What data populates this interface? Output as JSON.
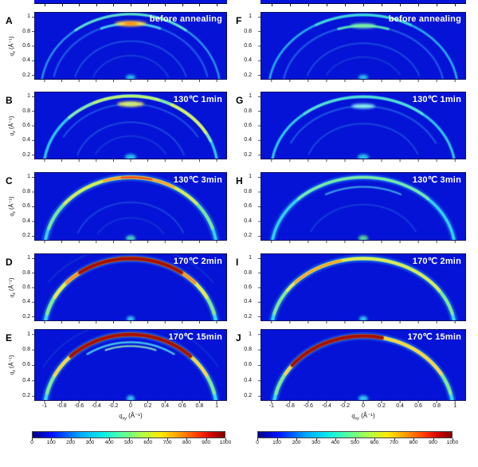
{
  "figure": {
    "background": "#ffffff",
    "panel_bg": "#0513d6",
    "panel_border": "#0b1060",
    "colormap_name": "jet",
    "colormap_css": "linear-gradient(to right,#000082 0%,#0010ff 10%,#00a8ff 25%,#0cf0e6 37%,#58ff9b 47%,#b0ff47 57%,#ffe900 67%,#ff9400 77%,#ff2f00 87%,#c80000 94%,#7f0000 100%)"
  },
  "axes": {
    "y_label": {
      "pre": "q",
      "sub": "z",
      "post": " (Å⁻¹)"
    },
    "x_label": {
      "pre": "q",
      "sub": "xy",
      "post": " (Å⁻¹)"
    },
    "y_ticks": [
      "1",
      "0.8",
      "0.6",
      "0.4",
      "0.2"
    ],
    "x_ticks": [
      "-1",
      "-0.8",
      "-0.6",
      "-0.4",
      "-0.2",
      "0",
      "0.2",
      "0.4",
      "0.6",
      "0.8",
      "1"
    ]
  },
  "colorbar": {
    "min": 0,
    "max": 1000,
    "ticks": [
      "0",
      "100",
      "200",
      "300",
      "400",
      "500",
      "600",
      "700",
      "800",
      "900",
      "1000"
    ]
  },
  "chart_data": {
    "type": "heatmap",
    "subtype": "GIWAXS 2D scattering patterns (intensity on jet colormap)",
    "x_range": [
      -1.12,
      1.12
    ],
    "y_range": [
      0.14,
      1.07
    ],
    "intensity_range": [
      0,
      1000
    ],
    "grid": false,
    "panels": [
      {
        "id": "A",
        "column": "left",
        "row": 0,
        "annotation": "before annealing",
        "arcs": [
          {
            "q": 1.04,
            "a1": -87,
            "a2": 87,
            "c": "#2fb4f0",
            "w": 2.5,
            "o": 0.8
          },
          {
            "q": 1.04,
            "a1": -38,
            "a2": 38,
            "c": "#63e3c9",
            "w": 3,
            "o": 0.9
          },
          {
            "q": 0.91,
            "a1": -78,
            "a2": 78,
            "c": "#1e5ce8",
            "w": 2.5,
            "o": 0.9
          },
          {
            "q": 0.91,
            "a1": -22,
            "a2": 22,
            "c": "#4fd0f0",
            "w": 3,
            "o": 0.9
          },
          {
            "q": 0.67,
            "a1": -74,
            "a2": 74,
            "c": "#1e55e0",
            "w": 2,
            "o": 0.85
          },
          {
            "q": 0.47,
            "a1": -68,
            "a2": 68,
            "c": "#1c4cd8",
            "w": 2,
            "o": 0.7
          }
        ],
        "spots": [
          {
            "q": 0.91,
            "x": 0,
            "c": "#ffd843",
            "rx": 20,
            "ry": 3.2,
            "o": 1
          },
          {
            "q": 0.91,
            "x": 0,
            "c": "#ff7300",
            "rx": 9,
            "ry": 1.8,
            "o": 1
          },
          {
            "q": 0.17,
            "x": 0,
            "c": "#2ad0f0",
            "rx": 6,
            "ry": 3.5,
            "o": 0.9
          }
        ]
      },
      {
        "id": "B",
        "column": "left",
        "row": 1,
        "annotation": "130℃ 1min",
        "arcs": [
          {
            "q": 1.01,
            "a1": -87,
            "a2": 87,
            "c": "#2fd0f5",
            "w": 3.5,
            "o": 0.95
          },
          {
            "q": 1.01,
            "a1": -45,
            "a2": 68,
            "c": "#8fe9a5",
            "w": 3.5,
            "o": 0.9
          },
          {
            "q": 1.01,
            "a1": 28,
            "a2": 60,
            "c": "#e9ed55",
            "w": 3.5,
            "o": 0.9
          },
          {
            "q": 1.01,
            "a1": -25,
            "a2": 20,
            "c": "#c9ef6a",
            "w": 3,
            "o": 0.9
          },
          {
            "q": 0.9,
            "a1": -60,
            "a2": 60,
            "c": "#1e5ce8",
            "w": 2.2,
            "o": 0.8
          },
          {
            "q": 0.65,
            "a1": -72,
            "a2": 72,
            "c": "#1e55e0",
            "w": 2,
            "o": 0.8
          },
          {
            "q": 0.46,
            "a1": -62,
            "a2": 62,
            "c": "#1c4cd8",
            "w": 2,
            "o": 0.6
          }
        ],
        "spots": [
          {
            "q": 0.9,
            "x": 0,
            "c": "#eef060",
            "rx": 17,
            "ry": 3.2,
            "o": 1
          },
          {
            "q": 0.9,
            "x": 0,
            "c": "#b8f080",
            "rx": 8,
            "ry": 1.8,
            "o": 1
          },
          {
            "q": 0.17,
            "x": 0,
            "c": "#2ad0f0",
            "rx": 7,
            "ry": 4,
            "o": 0.9
          }
        ]
      },
      {
        "id": "C",
        "column": "left",
        "row": 2,
        "annotation": "130℃ 3min",
        "arcs": [
          {
            "q": 1.0,
            "a1": -88,
            "a2": 88,
            "c": "#2fa8ff",
            "w": 10,
            "o": 0.3
          },
          {
            "q": 1.0,
            "a1": -88,
            "a2": 88,
            "c": "#35d6fa",
            "w": 4,
            "o": 1
          },
          {
            "q": 1.0,
            "a1": -72,
            "a2": 72,
            "c": "#7ce98a",
            "w": 4,
            "o": 0.95
          },
          {
            "q": 1.0,
            "a1": -50,
            "a2": 50,
            "c": "#e3ea50",
            "w": 3.5,
            "o": 0.95
          },
          {
            "q": 1.0,
            "a1": -18,
            "a2": 30,
            "c": "#ff9a2e",
            "w": 3,
            "o": 0.95
          },
          {
            "q": 1.0,
            "a1": -6,
            "a2": 14,
            "c": "#e8401a",
            "w": 2.2,
            "o": 0.95
          },
          {
            "q": 0.66,
            "a1": -68,
            "a2": 68,
            "c": "#1e55e0",
            "w": 2,
            "o": 0.7
          },
          {
            "q": 0.45,
            "a1": -58,
            "a2": 58,
            "c": "#1c4cd8",
            "w": 2,
            "o": 0.5
          }
        ],
        "spots": [
          {
            "q": 0.17,
            "x": 0,
            "c": "#4fe0c0",
            "rx": 6,
            "ry": 4,
            "o": 0.9
          }
        ]
      },
      {
        "id": "D",
        "column": "left",
        "row": 3,
        "annotation": "170℃ 2min",
        "arcs": [
          {
            "q": 1.0,
            "a1": -88,
            "a2": 88,
            "c": "#2fa8ff",
            "w": 10,
            "o": 0.3
          },
          {
            "q": 1.0,
            "a1": -88,
            "a2": 88,
            "c": "#38d8fa",
            "w": 4.5,
            "o": 1
          },
          {
            "q": 1.0,
            "a1": -76,
            "a2": 76,
            "c": "#86ea80",
            "w": 4.2,
            "o": 1
          },
          {
            "q": 1.0,
            "a1": -62,
            "a2": 62,
            "c": "#e8ea4c",
            "w": 4.2,
            "o": 1
          },
          {
            "q": 1.0,
            "a1": -48,
            "a2": 48,
            "c": "#ff9227",
            "w": 4.2,
            "o": 1
          },
          {
            "q": 1.0,
            "a1": -36,
            "a2": 36,
            "c": "#a31104",
            "w": 5,
            "o": 1
          },
          {
            "q": 1.17,
            "a1": -55,
            "a2": 55,
            "c": "#1640d0",
            "w": 2,
            "o": 0.6
          }
        ],
        "spots": [
          {
            "q": 0.17,
            "x": 0,
            "c": "#3ad8f0",
            "rx": 5,
            "ry": 3.5,
            "o": 0.9
          }
        ]
      },
      {
        "id": "E",
        "column": "left",
        "row": 4,
        "annotation": "170℃ 15min",
        "arcs": [
          {
            "q": 1.0,
            "a1": -88,
            "a2": 88,
            "c": "#2fa8ff",
            "w": 10,
            "o": 0.3
          },
          {
            "q": 1.0,
            "a1": -88,
            "a2": 88,
            "c": "#38d8fa",
            "w": 4.5,
            "o": 1
          },
          {
            "q": 1.0,
            "a1": -76,
            "a2": 76,
            "c": "#86ea80",
            "w": 4,
            "o": 1
          },
          {
            "q": 1.0,
            "a1": -62,
            "a2": 62,
            "c": "#ffd243",
            "w": 4,
            "o": 1
          },
          {
            "q": 1.0,
            "a1": -44,
            "a2": 44,
            "c": "#a31104",
            "w": 5,
            "o": 1
          },
          {
            "q": 0.9,
            "a1": -34,
            "a2": 34,
            "c": "#49cdf0",
            "w": 2.5,
            "o": 0.95
          },
          {
            "q": 0.85,
            "a1": -20,
            "a2": 20,
            "c": "#8feac0",
            "w": 2.2,
            "o": 0.9
          },
          {
            "q": 1.17,
            "a1": -60,
            "a2": 60,
            "c": "#1640d0",
            "w": 2,
            "o": 0.6
          }
        ],
        "spots": [
          {
            "q": 0.17,
            "x": 0,
            "c": "#3ad8f0",
            "rx": 5,
            "ry": 4,
            "o": 0.9
          }
        ]
      },
      {
        "id": "F",
        "column": "right",
        "row": 0,
        "annotation": "before annealing",
        "arcs": [
          {
            "q": 1.03,
            "a1": -85,
            "a2": 85,
            "c": "#2ab8ef",
            "w": 2.8,
            "o": 0.9
          },
          {
            "q": 1.03,
            "a1": -30,
            "a2": 30,
            "c": "#45d8d8",
            "w": 3,
            "o": 0.9
          },
          {
            "q": 0.88,
            "a1": -80,
            "a2": 80,
            "c": "#1e5ce8",
            "w": 2.5,
            "o": 0.9
          },
          {
            "q": 0.88,
            "a1": -18,
            "a2": 18,
            "c": "#55e0b8",
            "w": 3,
            "o": 0.95
          },
          {
            "q": 0.64,
            "a1": -72,
            "a2": 72,
            "c": "#1e55e0",
            "w": 2,
            "o": 0.8
          },
          {
            "q": 0.45,
            "a1": -62,
            "a2": 62,
            "c": "#1c4cd8",
            "w": 2,
            "o": 0.6
          }
        ],
        "spots": [
          {
            "q": 0.88,
            "x": 0,
            "c": "#7df0a8",
            "rx": 16,
            "ry": 3,
            "o": 1
          },
          {
            "q": 0.17,
            "x": 0,
            "c": "#2ad0f0",
            "rx": 6,
            "ry": 3.5,
            "o": 0.9
          }
        ]
      },
      {
        "id": "G",
        "column": "right",
        "row": 1,
        "annotation": "130℃ 1min",
        "arcs": [
          {
            "q": 1.0,
            "a1": -86,
            "a2": 86,
            "c": "#30d2f7",
            "w": 3.2,
            "o": 0.95
          },
          {
            "q": 1.0,
            "a1": -40,
            "a2": 40,
            "c": "#55dfd0",
            "w": 3,
            "o": 0.9
          },
          {
            "q": 0.87,
            "a1": -65,
            "a2": 65,
            "c": "#1e5ce8",
            "w": 2.3,
            "o": 0.85
          },
          {
            "q": 0.63,
            "a1": -70,
            "a2": 70,
            "c": "#1e55e0",
            "w": 2,
            "o": 0.75
          }
        ],
        "spots": [
          {
            "q": 0.87,
            "x": 0,
            "c": "#8df2f0",
            "rx": 15,
            "ry": 3,
            "o": 1
          },
          {
            "q": 0.17,
            "x": 0,
            "c": "#2ad0f0",
            "rx": 7,
            "ry": 4,
            "o": 0.9
          }
        ]
      },
      {
        "id": "H",
        "column": "right",
        "row": 2,
        "annotation": "130℃ 3min",
        "arcs": [
          {
            "q": 1.0,
            "a1": -88,
            "a2": 88,
            "c": "#2fa8ff",
            "w": 9,
            "o": 0.25
          },
          {
            "q": 1.0,
            "a1": -87,
            "a2": 87,
            "c": "#32d4f8",
            "w": 3.8,
            "o": 1
          },
          {
            "q": 1.0,
            "a1": -45,
            "a2": 45,
            "c": "#7fe9a0",
            "w": 3.2,
            "o": 0.95
          },
          {
            "q": 0.87,
            "a1": -28,
            "a2": 28,
            "c": "#3fa8e8",
            "w": 2.3,
            "o": 0.9
          },
          {
            "q": 0.63,
            "a1": -65,
            "a2": 65,
            "c": "#1e55e0",
            "w": 2,
            "o": 0.6
          }
        ],
        "spots": [
          {
            "q": 0.17,
            "x": 0,
            "c": "#5fe88f",
            "rx": 6,
            "ry": 4,
            "o": 0.9
          }
        ]
      },
      {
        "id": "I",
        "column": "right",
        "row": 3,
        "annotation": "170℃ 2min",
        "arcs": [
          {
            "q": 1.0,
            "a1": -88,
            "a2": 88,
            "c": "#2fa8ff",
            "w": 10,
            "o": 0.3
          },
          {
            "q": 1.0,
            "a1": -88,
            "a2": 88,
            "c": "#38d8fa",
            "w": 4.2,
            "o": 1
          },
          {
            "q": 1.0,
            "a1": -76,
            "a2": 76,
            "c": "#86ea80",
            "w": 3.8,
            "o": 1
          },
          {
            "q": 1.0,
            "a1": -56,
            "a2": 56,
            "c": "#e6ea4e",
            "w": 3.5,
            "o": 0.95
          },
          {
            "q": 1.0,
            "a1": -48,
            "a2": -14,
            "c": "#ffa02a",
            "w": 3,
            "o": 0.95
          }
        ],
        "spots": [
          {
            "q": 0.17,
            "x": 0,
            "c": "#3ad8f0",
            "rx": 5,
            "ry": 3.5,
            "o": 0.9
          }
        ]
      },
      {
        "id": "J",
        "column": "right",
        "row": 4,
        "annotation": "170℃ 15min",
        "arcs": [
          {
            "q": 0.98,
            "a1": -88,
            "a2": 88,
            "c": "#2fa8ff",
            "w": 10,
            "o": 0.3
          },
          {
            "q": 0.98,
            "a1": -88,
            "a2": 88,
            "c": "#38d8fa",
            "w": 4.5,
            "o": 1
          },
          {
            "q": 0.98,
            "a1": -76,
            "a2": 76,
            "c": "#86ea80",
            "w": 4,
            "o": 1
          },
          {
            "q": 0.98,
            "a1": -60,
            "a2": 60,
            "c": "#ffd243",
            "w": 4,
            "o": 1
          },
          {
            "q": 0.98,
            "a1": -52,
            "a2": 12,
            "c": "#a31104",
            "w": 5,
            "o": 1
          }
        ],
        "spots": [
          {
            "q": 0.17,
            "x": 0,
            "c": "#3ad8f0",
            "rx": 6,
            "ry": 4,
            "o": 0.9
          }
        ]
      }
    ]
  }
}
